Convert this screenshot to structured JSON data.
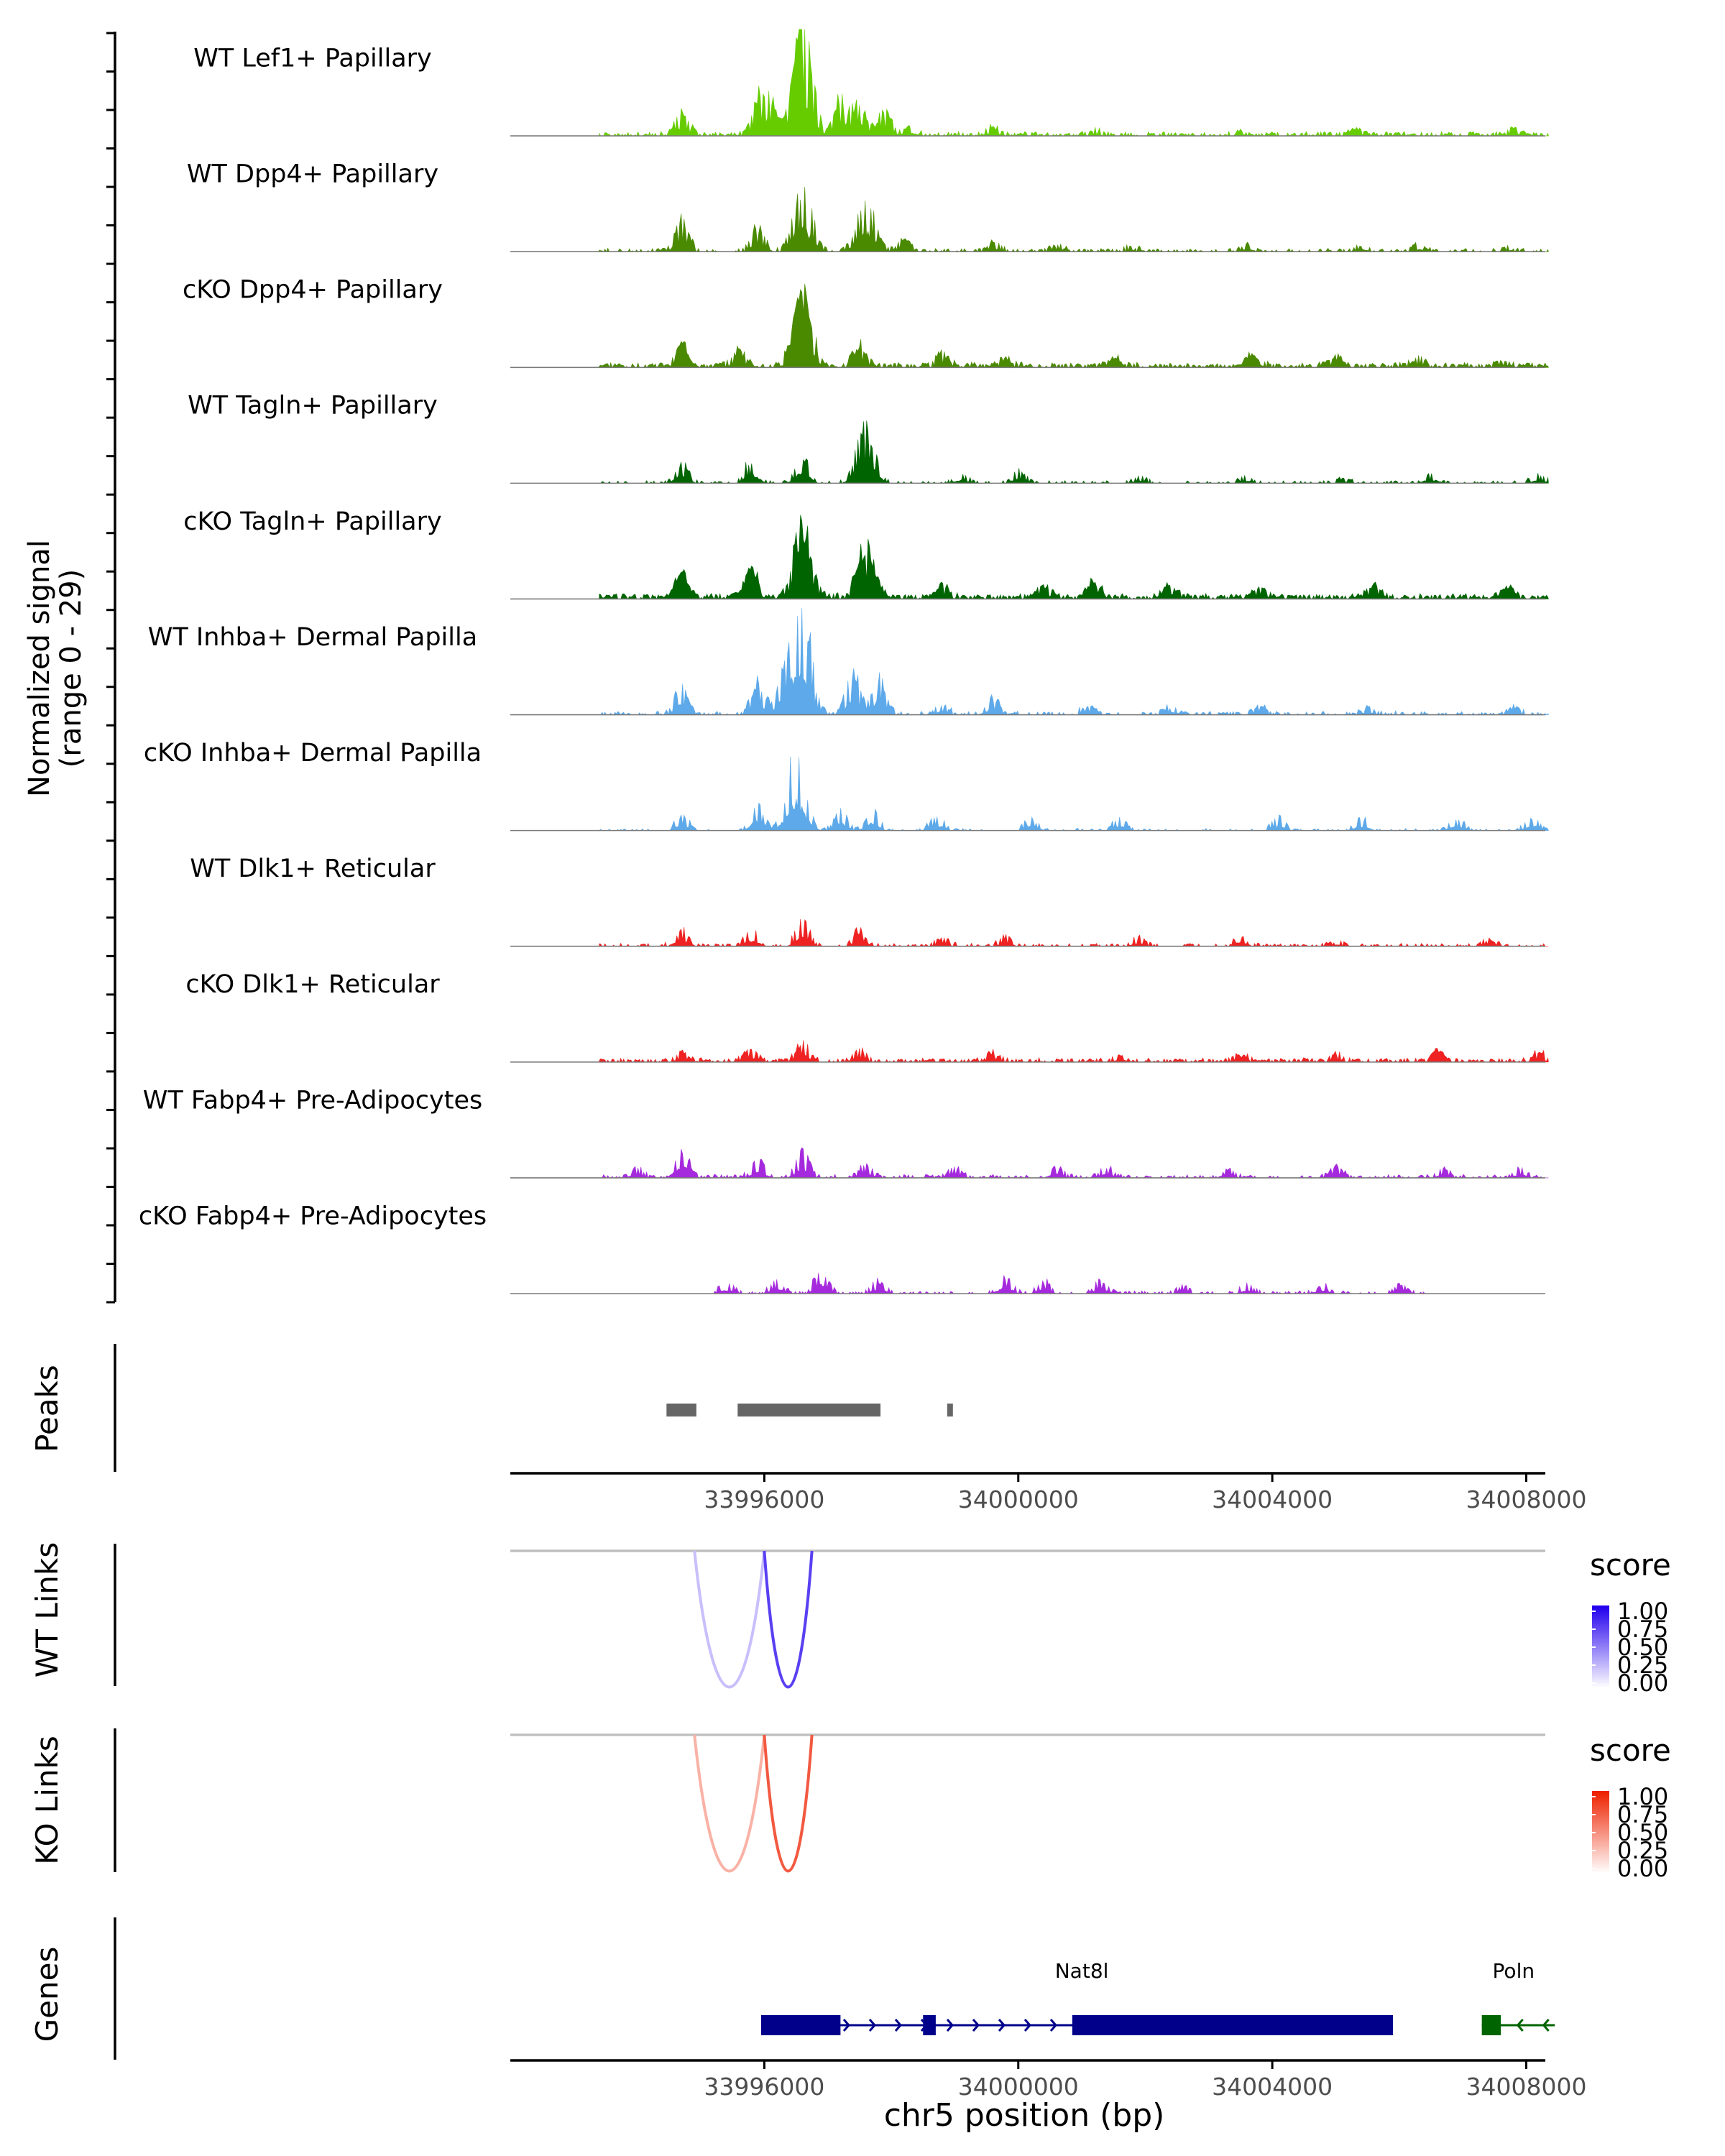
{
  "chart_data": {
    "type": "genome-browser",
    "region": {
      "chrom": "chr5",
      "start": 33992000,
      "end": 34008300
    },
    "xlabel": "chr5 position (bp)",
    "x_ticks": [
      33996000,
      34000000,
      34004000,
      34008000
    ],
    "x_tick_labels": [
      "33996000",
      "34000000",
      "34004000",
      "34008000"
    ],
    "coverage": {
      "ylabel_line1": "Normalized signal",
      "ylabel_line2": "(range 0 - 29)",
      "ylim": [
        0,
        29
      ],
      "tracks": [
        {
          "label": "WT Lef1+ Papillary",
          "color": "#66CC00",
          "density": 0.7,
          "scale": 1.0,
          "peaks": [
            [
              33994700,
              6
            ],
            [
              33996000,
              12
            ],
            [
              33996600,
              29
            ],
            [
              33997200,
              9
            ],
            [
              33997500,
              8
            ],
            [
              33997900,
              6
            ],
            [
              33998300,
              2
            ],
            [
              33999600,
              2
            ],
            [
              34001200,
              1
            ],
            [
              34003500,
              1
            ],
            [
              34005300,
              1.5
            ],
            [
              34007800,
              1.5
            ]
          ]
        },
        {
          "label": "WT Dpp4+ Papillary",
          "color": "#4A8A00",
          "density": 0.55,
          "scale": 1.0,
          "peaks": [
            [
              33994700,
              8
            ],
            [
              33995900,
              6
            ],
            [
              33996600,
              16
            ],
            [
              33997600,
              13
            ],
            [
              33998200,
              3
            ],
            [
              33999600,
              2
            ],
            [
              34000600,
              1.5
            ],
            [
              34001800,
              1
            ],
            [
              34003600,
              1.5
            ],
            [
              34005400,
              1.5
            ],
            [
              34006300,
              1.5
            ],
            [
              34007700,
              1
            ]
          ]
        },
        {
          "label": "cKO Dpp4+ Papillary",
          "color": "#4A8A00",
          "density": 0.85,
          "scale": 1.0,
          "peaks": [
            [
              33994700,
              5
            ],
            [
              33995600,
              4
            ],
            [
              33996600,
              18
            ],
            [
              33997500,
              5
            ],
            [
              33998800,
              3
            ],
            [
              33999800,
              2
            ],
            [
              34001500,
              2
            ],
            [
              34003700,
              3
            ],
            [
              34005000,
              2
            ],
            [
              34006300,
              2
            ],
            [
              34007600,
              1.5
            ]
          ]
        },
        {
          "label": "WT Tagln+ Papillary",
          "color": "#006400",
          "density": 0.45,
          "scale": 1.0,
          "peaks": [
            [
              33994700,
              5
            ],
            [
              33995800,
              6
            ],
            [
              33996600,
              7
            ],
            [
              33997600,
              15
            ],
            [
              33999100,
              2
            ],
            [
              34000000,
              3
            ],
            [
              34001900,
              1.5
            ],
            [
              34003600,
              1.5
            ],
            [
              34005100,
              1
            ],
            [
              34006500,
              2.5
            ],
            [
              34008200,
              2
            ]
          ]
        },
        {
          "label": "cKO Tagln+ Papillary",
          "color": "#006400",
          "density": 0.9,
          "scale": 1.0,
          "peaks": [
            [
              33994700,
              6
            ],
            [
              33995800,
              7
            ],
            [
              33996600,
              17
            ],
            [
              33997600,
              12
            ],
            [
              33998800,
              3
            ],
            [
              34000400,
              3
            ],
            [
              34001200,
              4
            ],
            [
              34002400,
              3
            ],
            [
              34003800,
              3
            ],
            [
              34005600,
              3
            ],
            [
              34007700,
              2
            ]
          ]
        },
        {
          "label": "WT Inhba+ Dermal Papilla",
          "color": "#5DA9E9",
          "density": 0.6,
          "scale": 1.0,
          "peaks": [
            [
              33994700,
              7
            ],
            [
              33995900,
              8
            ],
            [
              33996400,
              13
            ],
            [
              33996600,
              24
            ],
            [
              33997400,
              10
            ],
            [
              33997800,
              9
            ],
            [
              33998800,
              2
            ],
            [
              33999600,
              4
            ],
            [
              34001100,
              2
            ],
            [
              34002400,
              2
            ],
            [
              34003800,
              2
            ],
            [
              34005500,
              1.5
            ],
            [
              34007800,
              1.5
            ]
          ]
        },
        {
          "label": "cKO Inhba+ Dermal Papilla",
          "color": "#5DA9E9",
          "density": 0.35,
          "scale": 1.0,
          "peaks": [
            [
              33994700,
              4
            ],
            [
              33995900,
              7
            ],
            [
              33996500,
              19
            ],
            [
              33997200,
              5
            ],
            [
              33997700,
              5
            ],
            [
              33998700,
              4
            ],
            [
              34000200,
              3
            ],
            [
              34001600,
              3
            ],
            [
              34004100,
              3
            ],
            [
              34005400,
              3
            ],
            [
              34006900,
              3
            ],
            [
              34008100,
              3
            ]
          ]
        },
        {
          "label": "WT Dlk1+ Reticular",
          "color": "#EE2222",
          "density": 0.5,
          "scale": 1.0,
          "peaks": [
            [
              33994700,
              4
            ],
            [
              33995800,
              4
            ],
            [
              33996600,
              6
            ],
            [
              33997500,
              4
            ],
            [
              33998800,
              2
            ],
            [
              33999800,
              2
            ],
            [
              34001900,
              2
            ],
            [
              34003500,
              2.5
            ],
            [
              34005000,
              1
            ],
            [
              34007400,
              1.5
            ]
          ]
        },
        {
          "label": "cKO Dlk1+ Reticular",
          "color": "#EE2222",
          "density": 0.7,
          "scale": 1.0,
          "peaks": [
            [
              33994700,
              2
            ],
            [
              33995800,
              3
            ],
            [
              33996600,
              4.5
            ],
            [
              33997500,
              2.5
            ],
            [
              33999600,
              2
            ],
            [
              34001600,
              1.5
            ],
            [
              34003500,
              1.5
            ],
            [
              34005000,
              1.5
            ],
            [
              34006600,
              2.5
            ],
            [
              34008200,
              2
            ]
          ]
        },
        {
          "label": "WT Fabp4+ Pre-Adipocytes",
          "color": "#A52ADD",
          "density": 0.55,
          "scale": 1.0,
          "peaks": [
            [
              33994000,
              2
            ],
            [
              33994700,
              8
            ],
            [
              33995900,
              4
            ],
            [
              33996600,
              6
            ],
            [
              33997600,
              3
            ],
            [
              33999000,
              2.5
            ],
            [
              34000600,
              2.5
            ],
            [
              34001400,
              2.5
            ],
            [
              34003300,
              2
            ],
            [
              34005000,
              2.5
            ],
            [
              34006700,
              2
            ],
            [
              34007900,
              2
            ]
          ]
        },
        {
          "label": "cKO Fabp4+ Pre-Adipocytes",
          "color": "#A52ADD",
          "density": 0.45,
          "scale": 1.0,
          "xmin": 33995200,
          "xmax": 34006400,
          "peaks": [
            [
              33995400,
              2.5
            ],
            [
              33996200,
              3
            ],
            [
              33996900,
              6
            ],
            [
              33997800,
              3
            ],
            [
              33999800,
              4
            ],
            [
              34000400,
              3
            ],
            [
              34001300,
              3
            ],
            [
              34002600,
              2
            ],
            [
              34003600,
              2
            ],
            [
              34004800,
              2
            ],
            [
              34006000,
              2
            ]
          ]
        }
      ]
    },
    "peaks_track": {
      "label": "Peaks",
      "regions": [
        [
          33994460,
          33994930
        ],
        [
          33995580,
          33997830
        ],
        [
          33998880,
          33998960
        ]
      ]
    },
    "links_tracks": [
      {
        "label": "WT Links",
        "legend_title": "score",
        "scale_low": "#FFFFFF",
        "scale_high": "#2200EE",
        "scale_ticks": [
          "1.00",
          "0.75",
          "0.50",
          "0.25",
          "0.00"
        ],
        "links": [
          {
            "start": 33994900,
            "end": 33996000,
            "score": 0.25
          },
          {
            "start": 33996000,
            "end": 33996750,
            "score": 0.75
          }
        ]
      },
      {
        "label": "KO Links",
        "legend_title": "score",
        "scale_low": "#FFFFFF",
        "scale_high": "#EE2200",
        "scale_ticks": [
          "1.00",
          "0.75",
          "0.50",
          "0.25",
          "0.00"
        ],
        "links": [
          {
            "start": 33994900,
            "end": 33996000,
            "score": 0.35
          },
          {
            "start": 33996000,
            "end": 33996750,
            "score": 0.75
          }
        ]
      }
    ],
    "genes": {
      "label": "Genes",
      "items": [
        {
          "name": "Nat8l",
          "strand": "+",
          "color": "#00008B",
          "start": 33995950,
          "end": 34005900,
          "exons": [
            [
              33995950,
              33997200
            ],
            [
              33998500,
              33998700
            ],
            [
              34000850,
              34005900
            ]
          ]
        },
        {
          "name": "Poln",
          "strand": "-",
          "color": "#006400",
          "start": 34007300,
          "end": 34008450,
          "exons": [
            [
              34007300,
              34007600
            ]
          ]
        }
      ]
    }
  }
}
